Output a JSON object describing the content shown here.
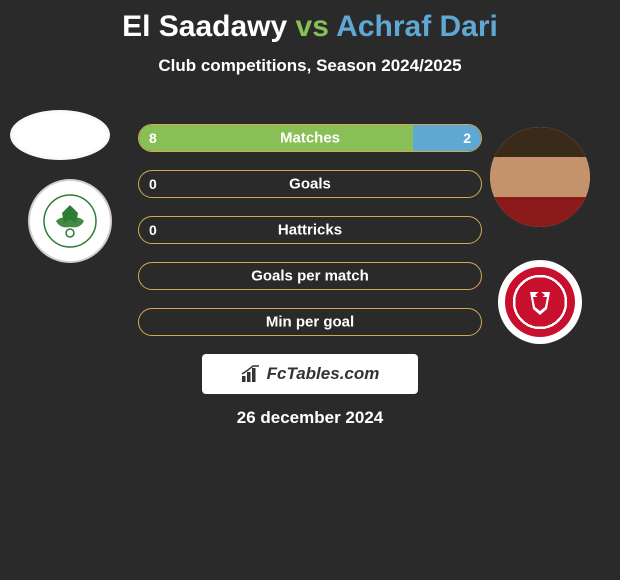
{
  "title": {
    "player1": "El Saadawy",
    "vs": "vs",
    "player2": "Achraf Dari",
    "player1_color": "#ffffff",
    "vs_color": "#88c057",
    "player2_color": "#5fa8d3",
    "fontsize": 30
  },
  "subtitle": "Club competitions, Season 2024/2025",
  "background_color": "#2a2a2a",
  "stats": {
    "bar_border_color": "#d4a853",
    "fill_left_color": "#88c057",
    "fill_right_color": "#5fa8d3",
    "label_fontsize": 15,
    "value_fontsize": 14,
    "rows": [
      {
        "label": "Matches",
        "left_value": "8",
        "right_value": "2",
        "left_pct": 80,
        "right_pct": 20
      },
      {
        "label": "Goals",
        "left_value": "0",
        "right_value": "",
        "left_pct": 0,
        "right_pct": 0
      },
      {
        "label": "Hattricks",
        "left_value": "0",
        "right_value": "",
        "left_pct": 0,
        "right_pct": 0
      },
      {
        "label": "Goals per match",
        "left_value": "",
        "right_value": "",
        "left_pct": 0,
        "right_pct": 0
      },
      {
        "label": "Min per goal",
        "left_value": "",
        "right_value": "",
        "left_pct": 0,
        "right_pct": 0
      }
    ]
  },
  "branding": "FcTables.com",
  "date": "26 december 2024",
  "avatars": {
    "left": {
      "background": "#ffffff"
    },
    "right": {
      "background": "#d4a574"
    }
  },
  "clubs": {
    "left": {
      "accent_color": "#2e7d32",
      "background": "#ffffff"
    },
    "right": {
      "accent_color": "#c8102e",
      "background": "#ffffff"
    }
  }
}
